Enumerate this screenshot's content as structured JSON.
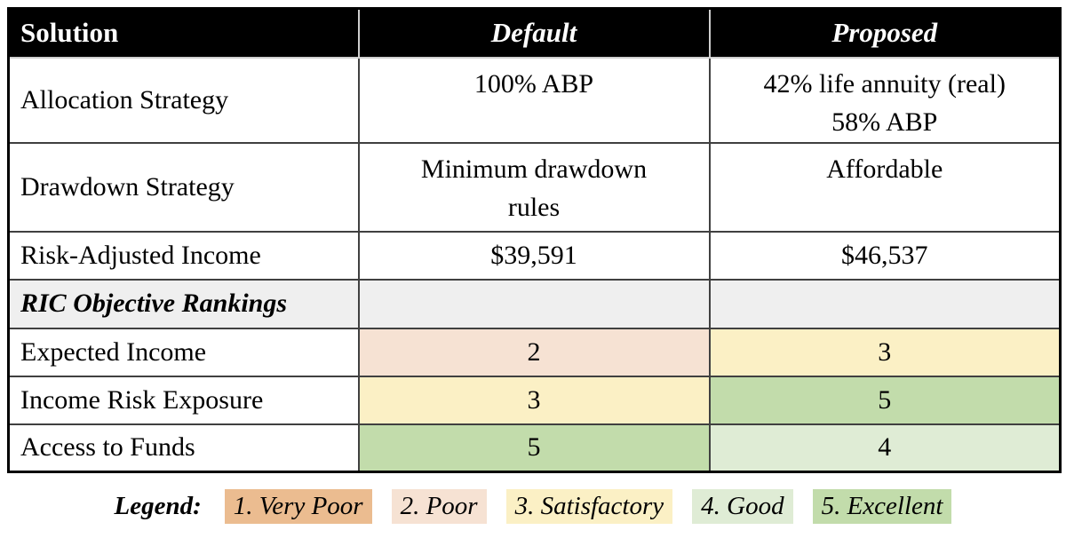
{
  "colors": {
    "header_bg": "#000000",
    "header_text": "#ffffff",
    "section_row_bg": "#efefef",
    "rank1_very_poor": "#ebbc90",
    "rank2_poor": "#f6e2d3",
    "rank3_satisfactory": "#fbf0c5",
    "rank4_good": "#dfecd5",
    "rank5_excellent": "#c2dcab"
  },
  "table": {
    "header": {
      "solution": "Solution",
      "default": "Default",
      "proposed": "Proposed"
    },
    "info_rows": [
      {
        "label": "Allocation Strategy",
        "default": "100% ABP",
        "proposed": "42% life annuity (real)\n58% ABP"
      },
      {
        "label": "Drawdown Strategy",
        "default": "Minimum drawdown\nrules",
        "proposed": "Affordable"
      },
      {
        "label": "Risk-Adjusted Income",
        "default": "$39,591",
        "proposed": "$46,537"
      }
    ],
    "section_row": {
      "label": "RIC Objective Rankings"
    },
    "ranking_rows": [
      {
        "label": "Expected Income",
        "default": "2",
        "proposed": "3"
      },
      {
        "label": "Income Risk Exposure",
        "default": "3",
        "proposed": "5"
      },
      {
        "label": "Access to Funds",
        "default": "5",
        "proposed": "4"
      }
    ]
  },
  "legend": {
    "title": "Legend:",
    "items": [
      {
        "label": "1. Very Poor"
      },
      {
        "label": "2. Poor"
      },
      {
        "label": "3. Satisfactory"
      },
      {
        "label": "4. Good"
      },
      {
        "label": "5. Excellent"
      }
    ]
  }
}
